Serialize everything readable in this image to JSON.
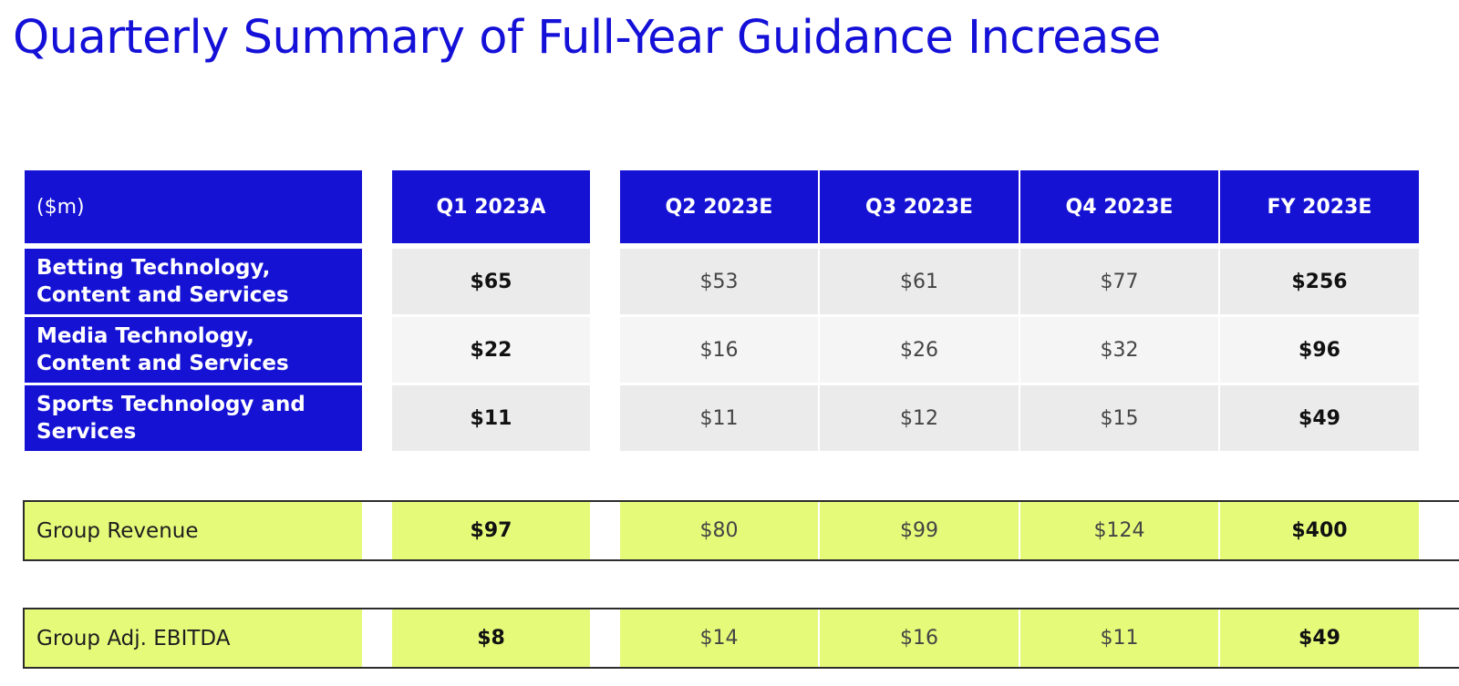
{
  "title": "Quarterly Summary of Full-Year Guidance Increase",
  "chart_data": {
    "type": "table",
    "title": "Quarterly Summary of Full-Year Guidance Increase",
    "unit_label": "($m)",
    "columns": [
      "($m)",
      "Q1 2023A",
      "Q2 2023E",
      "Q3 2023E",
      "Q4 2023E",
      "FY 2023E"
    ],
    "segment_rows": [
      {
        "label_lines": [
          "Betting Technology,",
          "Content and Services"
        ],
        "values": [
          "$65",
          "$53",
          "$61",
          "$77",
          "$256"
        ]
      },
      {
        "label_lines": [
          "Media Technology,",
          "Content and Services"
        ],
        "values": [
          "$22",
          "$16",
          "$26",
          "$32",
          "$96"
        ]
      },
      {
        "label_lines": [
          "Sports Technology and",
          "Services"
        ],
        "values": [
          "$11",
          "$11",
          "$12",
          "$15",
          "$49"
        ]
      }
    ],
    "total_rows": [
      {
        "label": "Group Revenue",
        "values": [
          "$97",
          "$80",
          "$99",
          "$124",
          "$400"
        ]
      },
      {
        "label": "Group Adj. EBITDA",
        "values": [
          "$8",
          "$14",
          "$16",
          "$11",
          "$49"
        ]
      }
    ]
  },
  "colors": {
    "title": "#1410d8",
    "header_fill": "#1612d4",
    "highlight_fill": "#e6fa7a",
    "row_fill_a": "#ebebeb",
    "row_fill_b": "#f5f5f5"
  }
}
